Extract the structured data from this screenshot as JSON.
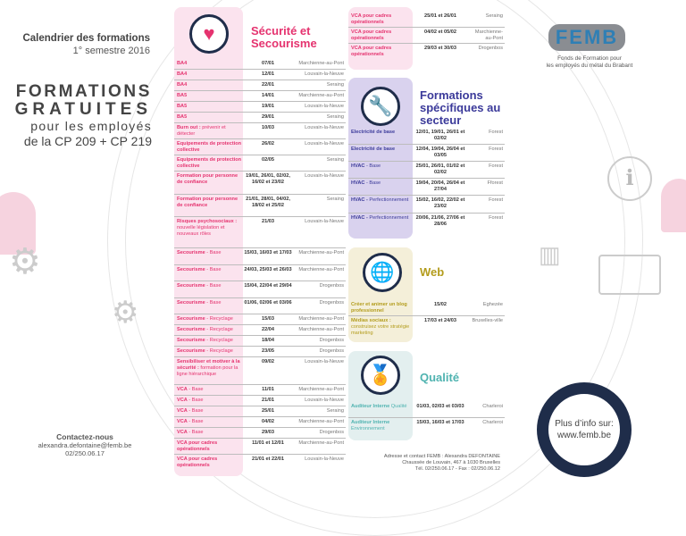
{
  "header": {
    "title": "Calendrier des formations",
    "semester": "1° semestre 2016",
    "headline1": "FORMATIONS",
    "headline2": "GRATUITES",
    "sub1": "pour les employés",
    "sub2": "de la CP 209 + CP 219"
  },
  "contact": {
    "title": "Contactez-nous",
    "email": "alexandra.defontaine@femb.be",
    "phone": "02/250.06.17"
  },
  "colors": {
    "pink": "#e5336f",
    "pink_bg": "#fbe3ee",
    "purple": "#3b3a9a",
    "purple_bg": "#d9d2ee",
    "gold": "#b39c1c",
    "gold_bg": "#f4efd9",
    "teal": "#4fb3b0",
    "teal_bg": "#e3efef",
    "navy": "#1f2d4a"
  },
  "securite": {
    "title": "Sécurité et Secourisme",
    "icon": "heart-icon",
    "rows": [
      {
        "label": "BA4",
        "sub": "",
        "date": "07/01",
        "place": "Marchienne-au-Pont"
      },
      {
        "label": "BA4",
        "sub": "",
        "date": "12/01",
        "place": "Louvain-la-Neuve"
      },
      {
        "label": "BA4",
        "sub": "",
        "date": "22/01",
        "place": "Seraing"
      },
      {
        "label": "BA5",
        "sub": "",
        "date": "14/01",
        "place": "Marchienne-au-Pont"
      },
      {
        "label": "BA5",
        "sub": "",
        "date": "19/01",
        "place": "Louvain-la-Neuve"
      },
      {
        "label": "BA5",
        "sub": "",
        "date": "29/01",
        "place": "Seraing"
      },
      {
        "label": "Burn out :",
        "sub": " prévenir et détecter",
        "date": "10/03",
        "place": "Louvain-la-Neuve"
      },
      {
        "label": "Equipements de protection collective",
        "sub": "",
        "date": "26/02",
        "place": "Louvain-la-Neuve"
      },
      {
        "label": "Equipements de protection collective",
        "sub": "",
        "date": "02/05",
        "place": "Seraing"
      },
      {
        "label": "Formation pour personne de confiance",
        "sub": "",
        "date": "19/01, 26/01, 02/02, 16/02 et 23/02",
        "place": "Louvain-la-Neuve"
      },
      {
        "label": "Formation pour personne de confiance",
        "sub": "",
        "date": "21/01, 28/01, 04/02, 18/02 et 25/02",
        "place": "Seraing"
      },
      {
        "label": "Risques psychosociaux :",
        "sub": " nouvelle législation et nouveaux rôles",
        "date": "21/03",
        "place": "Louvain-la-Neuve"
      },
      {
        "label": "Secourisme",
        "sub": " - Base",
        "date": "15/03, 16/03 et 17/03",
        "place": "Marchienne-au-Pont"
      },
      {
        "label": "Secourisme",
        "sub": " - Base",
        "date": "24/03, 25/03 et 26/03",
        "place": "Marchienne-au-Pont"
      },
      {
        "label": "Secourisme",
        "sub": " - Base",
        "date": "15/04, 22/04 et 29/04",
        "place": "Drogenbos"
      },
      {
        "label": "Secourisme",
        "sub": " - Base",
        "date": "01/06, 02/06 et 03/06",
        "place": "Drogenbos"
      },
      {
        "label": "Secourisme",
        "sub": " - Recyclage",
        "date": "15/03",
        "place": "Marchienne-au-Pont"
      },
      {
        "label": "Secourisme",
        "sub": " - Recyclage",
        "date": "22/04",
        "place": "Marchienne-au-Pont"
      },
      {
        "label": "Secourisme",
        "sub": " - Recyclage",
        "date": "18/04",
        "place": "Drogenbos"
      },
      {
        "label": "Secourisme",
        "sub": " - Recyclage",
        "date": "23/05",
        "place": "Drogenbos"
      },
      {
        "label": "Sensibiliser et motiver à la sécurité :",
        "sub": " formation pour la ligne hiérarchique",
        "date": "09/02",
        "place": "Louvain-la-Neuve"
      },
      {
        "label": "VCA",
        "sub": " - Base",
        "date": "11/01",
        "place": "Marchienne-au-Pont"
      },
      {
        "label": "VCA",
        "sub": " - Base",
        "date": "21/01",
        "place": "Louvain-la-Neuve"
      },
      {
        "label": "VCA",
        "sub": " - Base",
        "date": "25/01",
        "place": "Seraing"
      },
      {
        "label": "VCA",
        "sub": " - Base",
        "date": "04/02",
        "place": "Marchienne-au-Pont"
      },
      {
        "label": "VCA",
        "sub": " - Base",
        "date": "29/03",
        "place": "Drogenbos"
      },
      {
        "label": "VCA pour cadres opérationnels",
        "sub": "",
        "date": "11/01 et 12/01",
        "place": "Marchienne-au-Pont"
      },
      {
        "label": "VCA pour cadres opérationnels",
        "sub": "",
        "date": "21/01 et 22/01",
        "place": "Louvain-la-Neuve"
      }
    ]
  },
  "securite_cont": {
    "rows": [
      {
        "label": "VCA pour cadres opérationnels",
        "sub": "",
        "date": "25/01 et 26/01",
        "place": "Seraing"
      },
      {
        "label": "VCA pour cadres opérationnels",
        "sub": "",
        "date": "04/02 et 05/02",
        "place": "Marchienne-au-Pont"
      },
      {
        "label": "VCA pour cadres opérationnels",
        "sub": "",
        "date": "29/03 et 30/03",
        "place": "Drogenbos"
      }
    ]
  },
  "secteur": {
    "title": "Formations spécifiques au secteur",
    "icon": "tools-icon",
    "rows": [
      {
        "label": "Electricité de base",
        "sub": "",
        "date": "12/01, 19/01, 26/01 et 02/02",
        "place": "Forest"
      },
      {
        "label": "Electricité de base",
        "sub": "",
        "date": "12/04, 19/04, 26/04 et 03/05",
        "place": "Forest"
      },
      {
        "label": "HVAC",
        "sub": " - Base",
        "date": "25/01, 26/01, 01/02 et 02/02",
        "place": "Forest"
      },
      {
        "label": "HVAC",
        "sub": " - Base",
        "date": "19/04, 20/04, 26/04 et 27/04",
        "place": "Fforest"
      },
      {
        "label": "HVAC -",
        "sub": " Perfectionnement",
        "date": "15/02, 16/02, 22/02 et 23/02",
        "place": "Forest"
      },
      {
        "label": "HVAC -",
        "sub": " Perfectionnement",
        "date": "20/06, 21/06, 27/06 et 28/06",
        "place": "Forest"
      }
    ]
  },
  "web": {
    "title": "Web",
    "icon": "globe-icon",
    "rows": [
      {
        "label": "Créer et animer un blog professionnel",
        "sub": "",
        "date": "15/02",
        "place": "Eghezée"
      },
      {
        "label": "Médias sociaux :",
        "sub": " construisez votre stratégie marketing",
        "date": "17/03 et 24/03",
        "place": "Bruxelles-ville"
      }
    ]
  },
  "qualite": {
    "title": "Qualité",
    "icon": "award-ribbon-icon",
    "rows": [
      {
        "label": "Auditeur Interne",
        "sub": " Qualité",
        "date": "01/03, 02/03 et 03/03",
        "place": "Charleroi"
      },
      {
        "label": "Auditeur Interne",
        "sub": " Environnement",
        "date": "15/03, 16/03 et 17/03",
        "place": "Charleroi"
      }
    ]
  },
  "address": {
    "line1": "Adresse et contact FEMB : Alexandra DEFONTAINE",
    "line2": "Chaussée de Louvain, 467 à 1030 Bruxelles",
    "line3": "Tél. 02/250.06.17 - Fax : 02/250.06.12"
  },
  "logo": {
    "text": "FEMB",
    "caption1": "Fonds de Formation pour",
    "caption2": "les employés du métal du Brabant"
  },
  "more_info": {
    "line1": "Plus d’info sur:",
    "line2": "www.femb.be"
  }
}
